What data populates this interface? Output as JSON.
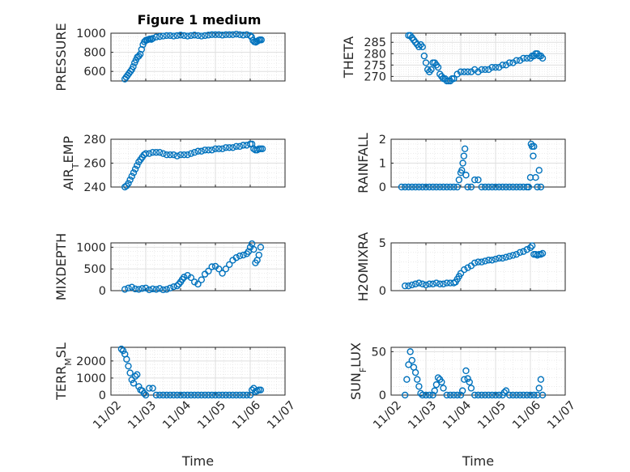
{
  "figure": {
    "title": "Figure 1 medium"
  },
  "style": {
    "marker_color": "#0072bd",
    "grid_color": "#dfdfdf",
    "axis_color": "#262626"
  },
  "chart_data": [
    {
      "type": "scatter",
      "ylabel": "PRESSURE",
      "ylim": [
        500,
        1000
      ],
      "yticks": [
        600,
        800,
        1000
      ],
      "xlim": [
        "11/02",
        "11/07"
      ],
      "xticks": [],
      "xlabel": "",
      "grid": true,
      "x": [
        2.4,
        2.44,
        2.48,
        2.52,
        2.56,
        2.6,
        2.64,
        2.68,
        2.72,
        2.76,
        2.8,
        2.84,
        2.88,
        2.92,
        2.96,
        3.0,
        3.04,
        3.08,
        3.12,
        3.16,
        3.2,
        3.3,
        3.4,
        3.5,
        3.6,
        3.7,
        3.8,
        3.9,
        4.0,
        4.1,
        4.2,
        4.3,
        4.4,
        4.5,
        4.6,
        4.7,
        4.8,
        4.9,
        5.0,
        5.1,
        5.2,
        5.3,
        5.4,
        5.5,
        5.6,
        5.7,
        5.8,
        5.9,
        6.0,
        6.04,
        6.08,
        6.12,
        6.16,
        6.2,
        6.24,
        6.28,
        6.32
      ],
      "y": [
        520,
        540,
        560,
        580,
        600,
        620,
        650,
        690,
        720,
        750,
        760,
        780,
        830,
        880,
        910,
        925,
        930,
        935,
        940,
        935,
        945,
        960,
        965,
        970,
        975,
        975,
        970,
        975,
        980,
        975,
        970,
        975,
        980,
        975,
        970,
        975,
        980,
        985,
        985,
        985,
        980,
        985,
        985,
        985,
        990,
        985,
        980,
        985,
        975,
        960,
        925,
        910,
        905,
        915,
        925,
        930,
        930
      ]
    },
    {
      "type": "scatter",
      "ylabel": "THETA",
      "ylim": [
        268,
        289
      ],
      "yticks": [
        270,
        275,
        280,
        285
      ],
      "xlim": [
        "11/02",
        "11/07"
      ],
      "xticks": [],
      "xlabel": "",
      "grid": true,
      "x": [
        2.5,
        2.55,
        2.6,
        2.65,
        2.7,
        2.75,
        2.8,
        2.85,
        2.9,
        2.95,
        3.0,
        3.05,
        3.1,
        3.15,
        3.2,
        3.25,
        3.3,
        3.35,
        3.4,
        3.45,
        3.5,
        3.55,
        3.6,
        3.65,
        3.7,
        3.75,
        3.8,
        3.9,
        4.0,
        4.1,
        4.2,
        4.3,
        4.4,
        4.5,
        4.6,
        4.7,
        4.8,
        4.9,
        5.0,
        5.1,
        5.2,
        5.3,
        5.4,
        5.5,
        5.6,
        5.7,
        5.8,
        5.9,
        6.0,
        6.05,
        6.1,
        6.15,
        6.2,
        6.25,
        6.3,
        6.35
      ],
      "y": [
        288,
        288,
        287,
        286,
        285,
        284,
        283,
        284,
        283,
        279,
        276,
        273,
        272,
        273,
        276,
        276,
        275,
        274,
        271,
        270,
        269,
        269,
        268,
        268,
        268,
        269,
        269,
        271,
        272,
        272,
        272,
        272,
        273,
        272,
        273,
        273,
        273,
        274,
        274,
        274,
        275,
        275,
        276,
        276,
        277,
        277,
        278,
        278,
        278,
        279,
        279,
        280,
        280,
        279,
        279,
        278
      ]
    },
    {
      "type": "scatter",
      "ylabel": "AIR_TEMP",
      "ylim": [
        240,
        280
      ],
      "yticks": [
        240,
        260,
        280
      ],
      "xlim": [
        "11/02",
        "11/07"
      ],
      "xticks": [],
      "xlabel": "",
      "grid": true,
      "x": [
        2.4,
        2.45,
        2.5,
        2.55,
        2.6,
        2.65,
        2.7,
        2.75,
        2.8,
        2.85,
        2.9,
        2.95,
        3.0,
        3.1,
        3.2,
        3.3,
        3.4,
        3.5,
        3.6,
        3.7,
        3.8,
        3.9,
        4.0,
        4.1,
        4.2,
        4.3,
        4.4,
        4.5,
        4.6,
        4.7,
        4.8,
        4.9,
        5.0,
        5.1,
        5.2,
        5.3,
        5.4,
        5.5,
        5.6,
        5.7,
        5.8,
        5.9,
        6.0,
        6.05,
        6.1,
        6.15,
        6.2,
        6.25,
        6.3,
        6.35
      ],
      "y": [
        240,
        241,
        243,
        246,
        249,
        252,
        255,
        258,
        261,
        263,
        265,
        267,
        268,
        268,
        269,
        269,
        269,
        268,
        267,
        267,
        267,
        266,
        267,
        267,
        267,
        268,
        269,
        270,
        270,
        271,
        271,
        271,
        272,
        272,
        272,
        273,
        273,
        273,
        274,
        274,
        275,
        275,
        276,
        276,
        272,
        271,
        271,
        272,
        272,
        272
      ]
    },
    {
      "type": "scatter",
      "ylabel": "RAINFALL",
      "ylim": [
        0,
        2
      ],
      "yticks": [
        0,
        1,
        2
      ],
      "xlim": [
        "11/02",
        "11/07"
      ],
      "xticks": [],
      "xlabel": "",
      "grid": true,
      "x": [
        2.3,
        2.4,
        2.5,
        2.6,
        2.7,
        2.8,
        2.9,
        3.0,
        3.1,
        3.2,
        3.3,
        3.4,
        3.5,
        3.6,
        3.7,
        3.8,
        3.9,
        3.95,
        4.0,
        4.03,
        4.06,
        4.09,
        4.12,
        4.15,
        4.2,
        4.3,
        4.4,
        4.5,
        4.6,
        4.7,
        4.8,
        4.9,
        5.0,
        5.1,
        5.2,
        5.3,
        5.4,
        5.5,
        5.6,
        5.7,
        5.8,
        5.9,
        5.95,
        6.0,
        6.02,
        6.05,
        6.08,
        6.1,
        6.15,
        6.2,
        6.25,
        6.3
      ],
      "y": [
        0,
        0,
        0,
        0,
        0,
        0,
        0,
        0,
        0,
        0,
        0,
        0,
        0,
        0,
        0,
        0,
        0,
        0.3,
        0.6,
        0.7,
        1.0,
        1.3,
        1.6,
        0.5,
        0,
        0,
        0.3,
        0.3,
        0,
        0,
        0,
        0,
        0,
        0,
        0,
        0,
        0,
        0,
        0,
        0,
        0,
        0,
        0,
        0.4,
        1.8,
        1.7,
        1.3,
        1.7,
        0.4,
        0,
        0.7,
        0
      ]
    },
    {
      "type": "scatter",
      "ylabel": "MIXDEPTH",
      "ylim": [
        0,
        1100
      ],
      "yticks": [
        0,
        500,
        1000
      ],
      "xlim": [
        "11/02",
        "11/07"
      ],
      "xticks": [],
      "xlabel": "",
      "grid": true,
      "x": [
        2.4,
        2.5,
        2.6,
        2.7,
        2.8,
        2.9,
        3.0,
        3.1,
        3.2,
        3.3,
        3.4,
        3.5,
        3.6,
        3.7,
        3.8,
        3.9,
        3.95,
        4.0,
        4.05,
        4.1,
        4.2,
        4.3,
        4.4,
        4.5,
        4.6,
        4.7,
        4.8,
        4.9,
        5.0,
        5.1,
        5.2,
        5.3,
        5.4,
        5.5,
        5.6,
        5.7,
        5.8,
        5.9,
        5.95,
        6.0,
        6.05,
        6.1,
        6.15,
        6.2,
        6.25,
        6.3
      ],
      "y": [
        30,
        60,
        80,
        40,
        30,
        50,
        60,
        20,
        40,
        30,
        50,
        20,
        30,
        60,
        90,
        110,
        150,
        200,
        260,
        310,
        350,
        300,
        200,
        150,
        250,
        380,
        450,
        550,
        560,
        500,
        400,
        500,
        600,
        700,
        760,
        800,
        820,
        850,
        900,
        1000,
        1080,
        950,
        640,
        700,
        820,
        1000
      ]
    },
    {
      "type": "scatter",
      "ylabel": "H2OMIXRA",
      "ylim": [
        0,
        5
      ],
      "yticks": [
        0,
        5
      ],
      "xlim": [
        "11/02",
        "11/07"
      ],
      "xticks": [],
      "xlabel": "",
      "grid": true,
      "x": [
        2.4,
        2.5,
        2.6,
        2.7,
        2.8,
        2.9,
        3.0,
        3.1,
        3.2,
        3.3,
        3.4,
        3.5,
        3.6,
        3.7,
        3.8,
        3.85,
        3.9,
        3.95,
        4.0,
        4.1,
        4.2,
        4.3,
        4.4,
        4.5,
        4.6,
        4.7,
        4.8,
        4.9,
        5.0,
        5.1,
        5.2,
        5.3,
        5.4,
        5.5,
        5.6,
        5.7,
        5.8,
        5.9,
        6.0,
        6.05,
        6.1,
        6.15,
        6.2,
        6.25,
        6.3,
        6.35
      ],
      "y": [
        0.5,
        0.5,
        0.6,
        0.7,
        0.8,
        0.7,
        0.6,
        0.7,
        0.7,
        0.8,
        0.7,
        0.7,
        0.8,
        0.8,
        0.8,
        0.9,
        1.2,
        1.5,
        1.8,
        2.2,
        2.4,
        2.6,
        2.9,
        3.0,
        3.0,
        3.1,
        3.2,
        3.2,
        3.3,
        3.4,
        3.4,
        3.5,
        3.6,
        3.7,
        3.8,
        4.0,
        4.1,
        4.3,
        4.5,
        4.7,
        3.8,
        3.8,
        3.7,
        3.8,
        3.8,
        3.9
      ]
    },
    {
      "type": "scatter",
      "ylabel": "TERR_MSL",
      "ylim": [
        0,
        2800
      ],
      "yticks": [
        0,
        1000,
        2000
      ],
      "xlim": [
        "11/02",
        "11/07"
      ],
      "xticks": [
        "11/02",
        "11/03",
        "11/04",
        "11/05",
        "11/06",
        "11/07"
      ],
      "xlabel": "Time",
      "grid": true,
      "x": [
        2.3,
        2.35,
        2.4,
        2.45,
        2.5,
        2.55,
        2.6,
        2.65,
        2.7,
        2.75,
        2.8,
        2.85,
        2.9,
        2.95,
        3.0,
        3.1,
        3.2,
        3.3,
        3.4,
        3.5,
        3.6,
        3.7,
        3.8,
        3.9,
        4.0,
        4.1,
        4.2,
        4.3,
        4.4,
        4.5,
        4.6,
        4.7,
        4.8,
        4.9,
        5.0,
        5.1,
        5.2,
        5.3,
        5.4,
        5.5,
        5.6,
        5.7,
        5.8,
        5.9,
        6.0,
        6.05,
        6.1,
        6.15,
        6.2,
        6.25,
        6.3
      ],
      "y": [
        2700,
        2600,
        2400,
        2100,
        1700,
        1300,
        900,
        700,
        1100,
        1200,
        500,
        300,
        250,
        100,
        0,
        400,
        400,
        0,
        0,
        0,
        0,
        0,
        0,
        0,
        0,
        0,
        0,
        0,
        0,
        0,
        0,
        0,
        0,
        0,
        0,
        0,
        0,
        0,
        0,
        0,
        0,
        0,
        0,
        0,
        0,
        300,
        400,
        200,
        250,
        300,
        300
      ]
    },
    {
      "type": "scatter",
      "ylabel": "SUN_FLUX",
      "ylim": [
        0,
        55
      ],
      "yticks": [
        0,
        50
      ],
      "xlim": [
        "11/02",
        "11/07"
      ],
      "xticks": [
        "11/02",
        "11/03",
        "11/04",
        "11/05",
        "11/06",
        "11/07"
      ],
      "xlabel": "Time",
      "grid": true,
      "x": [
        2.4,
        2.45,
        2.5,
        2.55,
        2.6,
        2.65,
        2.7,
        2.75,
        2.8,
        2.85,
        2.9,
        3.0,
        3.1,
        3.2,
        3.25,
        3.3,
        3.35,
        3.4,
        3.45,
        3.5,
        3.6,
        3.7,
        3.8,
        3.9,
        4.0,
        4.05,
        4.1,
        4.15,
        4.2,
        4.25,
        4.3,
        4.4,
        4.5,
        4.6,
        4.7,
        4.8,
        4.9,
        5.0,
        5.1,
        5.2,
        5.25,
        5.3,
        5.4,
        5.5,
        5.6,
        5.7,
        5.8,
        5.9,
        6.0,
        6.1,
        6.2,
        6.25,
        6.3,
        6.35
      ],
      "y": [
        0,
        18,
        35,
        50,
        40,
        32,
        26,
        18,
        10,
        2,
        0,
        0,
        0,
        0,
        5,
        12,
        20,
        18,
        15,
        8,
        0,
        0,
        0,
        0,
        0,
        5,
        18,
        28,
        19,
        15,
        8,
        0,
        0,
        0,
        0,
        0,
        0,
        0,
        0,
        0,
        3,
        5,
        0,
        0,
        0,
        0,
        0,
        0,
        0,
        0,
        0,
        8,
        18,
        0
      ]
    }
  ]
}
